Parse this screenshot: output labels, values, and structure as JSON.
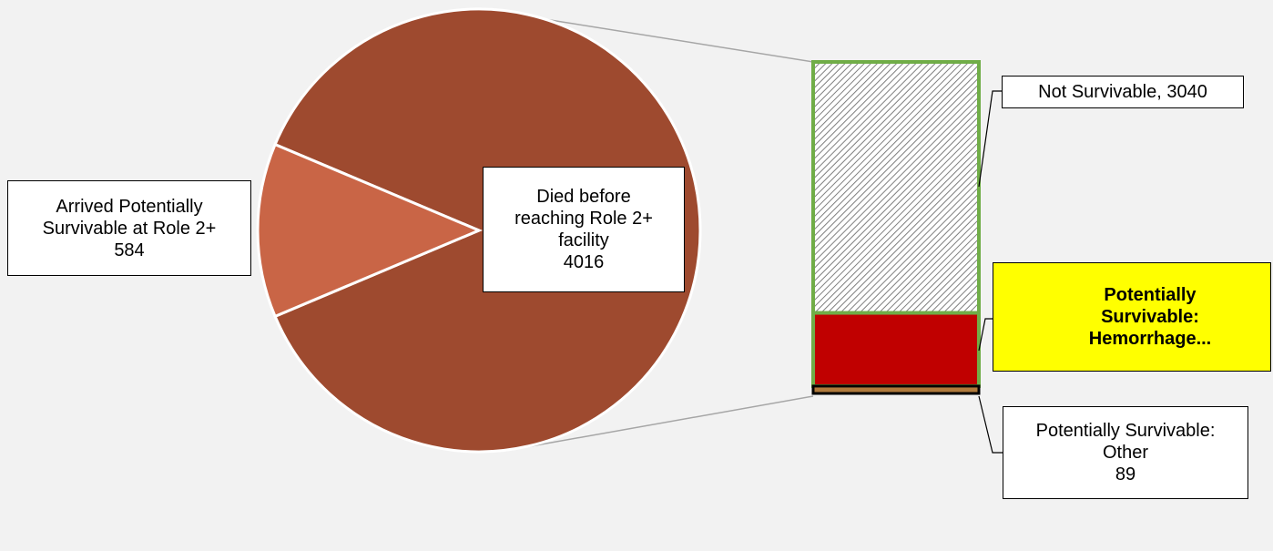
{
  "chart_data": {
    "type": "bar-of-pie",
    "pie": {
      "slices": [
        {
          "label_lines": [
            "Died before",
            "reaching Role 2+",
            "facility"
          ],
          "value": 4016,
          "color": "#9e4a2f"
        },
        {
          "label_lines": [
            "Arrived Potentially",
            "Survivable at Role 2+"
          ],
          "value": 584,
          "color": "#c96546"
        }
      ]
    },
    "bar": {
      "segments": [
        {
          "label_lines": [
            "Not Survivable, 3040"
          ],
          "value": 3040,
          "fill": "hatch"
        },
        {
          "label_lines": [
            "Potentially",
            "Survivable:",
            "Hemorrhage..."
          ],
          "value": 887,
          "fill": "#c00000",
          "highlight": "#ffff00"
        },
        {
          "label_lines": [
            "Potentially Survivable:",
            "Other"
          ],
          "value": 89,
          "fill": "#b07a3c"
        }
      ]
    },
    "colors": {
      "bar_border": "#70ad47",
      "connector": "#a6a6a6",
      "background": "#f2f2f2"
    }
  }
}
